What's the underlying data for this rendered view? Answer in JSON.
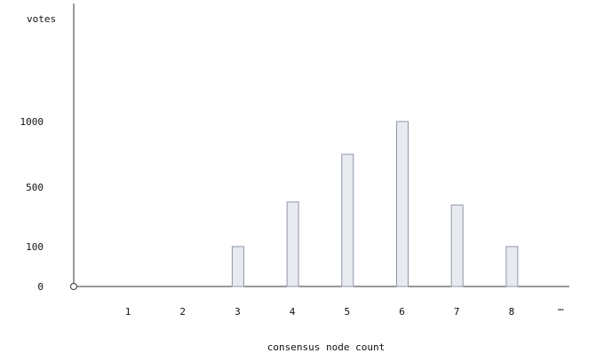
{
  "chart_data": {
    "type": "bar",
    "ylabel": "votes",
    "xlabel": "consensus node count",
    "categories": [
      "1",
      "2",
      "3",
      "4",
      "5",
      "6",
      "7",
      "8"
    ],
    "x_overflow_label": "…",
    "values": [
      0,
      0,
      100,
      400,
      750,
      1000,
      380,
      100
    ],
    "y_tick_labels": [
      "0",
      "100",
      "500",
      "1000"
    ],
    "y_tick_values": [
      0,
      100,
      500,
      1000
    ],
    "colors": {
      "bar_fill": "#e8eaef",
      "bar_stroke": "#8e97a8",
      "axis": "#333333"
    },
    "grid": false
  }
}
